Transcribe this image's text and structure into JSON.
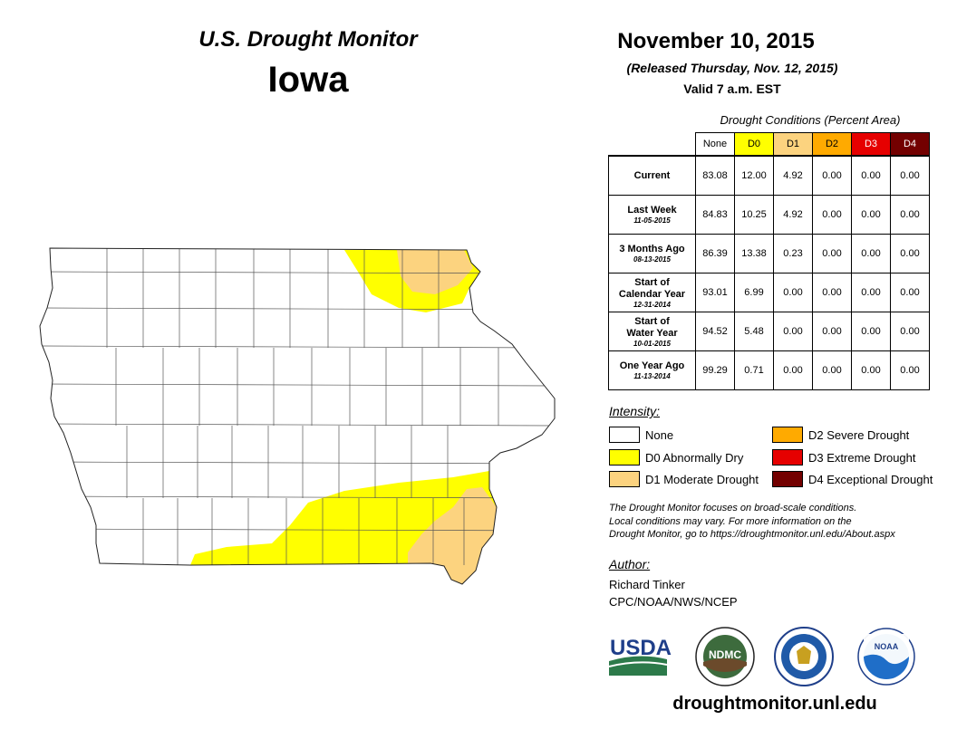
{
  "header": {
    "title": "U.S. Drought Monitor",
    "state": "Iowa",
    "date": "November 10, 2015",
    "released": "(Released Thursday, Nov. 12, 2015)",
    "valid": "Valid 7 a.m. EST"
  },
  "table": {
    "caption": "Drought Conditions (Percent Area)",
    "columns": [
      "None",
      "D0",
      "D1",
      "D2",
      "D3",
      "D4"
    ],
    "rows": [
      {
        "label": "Current",
        "label2": "",
        "date": "",
        "values": [
          "83.08",
          "12.00",
          "4.92",
          "0.00",
          "0.00",
          "0.00"
        ]
      },
      {
        "label": "Last Week",
        "label2": "",
        "date": "11-05-2015",
        "values": [
          "84.83",
          "10.25",
          "4.92",
          "0.00",
          "0.00",
          "0.00"
        ]
      },
      {
        "label": "3 Months Ago",
        "label2": "",
        "date": "08-13-2015",
        "values": [
          "86.39",
          "13.38",
          "0.23",
          "0.00",
          "0.00",
          "0.00"
        ]
      },
      {
        "label": "Start of",
        "label2": "Calendar Year",
        "date": "12-31-2014",
        "values": [
          "93.01",
          "6.99",
          "0.00",
          "0.00",
          "0.00",
          "0.00"
        ]
      },
      {
        "label": "Start of",
        "label2": "Water Year",
        "date": "10-01-2015",
        "values": [
          "94.52",
          "5.48",
          "0.00",
          "0.00",
          "0.00",
          "0.00"
        ]
      },
      {
        "label": "One Year Ago",
        "label2": "",
        "date": "11-13-2014",
        "values": [
          "99.29",
          "0.71",
          "0.00",
          "0.00",
          "0.00",
          "0.00"
        ]
      }
    ]
  },
  "legend": {
    "label": "Intensity:",
    "items": [
      {
        "label": "None",
        "color": "#ffffff"
      },
      {
        "label": "D0 Abnormally Dry",
        "color": "#ffff00"
      },
      {
        "label": "D1 Moderate Drought",
        "color": "#fcd37f"
      },
      {
        "label": "D2 Severe Drought",
        "color": "#ffaa00"
      },
      {
        "label": "D3 Extreme Drought",
        "color": "#e60000"
      },
      {
        "label": "D4 Exceptional Drought",
        "color": "#730000"
      }
    ]
  },
  "note": {
    "line1": "The Drought Monitor focuses on broad-scale conditions.",
    "line2": "Local conditions may vary. For more information on the",
    "line3": "Drought Monitor, go to https://droughtmonitor.unl.edu/About.aspx"
  },
  "author": {
    "label": "Author:",
    "name": "Richard Tinker",
    "org": "CPC/NOAA/NWS/NCEP"
  },
  "logos": {
    "usda": "USDA",
    "ndmc": "NDMC",
    "noaa": "NOAA"
  },
  "website": "droughtmonitor.unl.edu",
  "header_colors": [
    "#ffffff",
    "#ffff00",
    "#fcd37f",
    "#ffaa00",
    "#e60000",
    "#730000"
  ],
  "header_text_colors": [
    "#000000",
    "#000000",
    "#000000",
    "#000000",
    "#ffffff",
    "#ffffff"
  ]
}
